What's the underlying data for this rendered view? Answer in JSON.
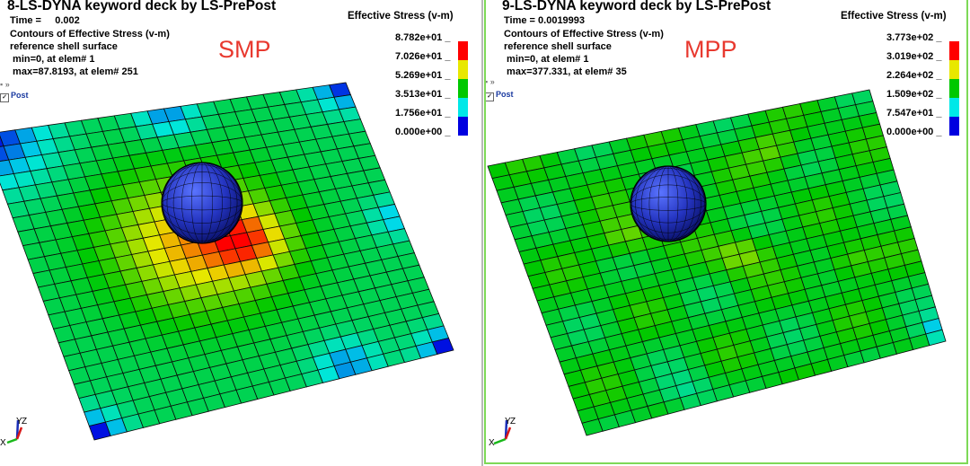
{
  "panels": [
    {
      "title": "8-LS-DYNA keyword deck by LS-PrePost",
      "time_label": "Time =",
      "time_value": "0.002",
      "contours": "Contours of Effective Stress (v-m)",
      "surface": "reference shell surface",
      "min_text": " min=0, at elem# 1",
      "max_text": " max=87.8193, at elem# 251",
      "tag": "SMP",
      "post_label": "Post",
      "legend_title": "Effective Stress (v-m)",
      "legend_values": [
        "8.782e+01",
        "7.026e+01",
        "5.269e+01",
        "3.513e+01",
        "1.756e+01",
        "0.000e+00"
      ],
      "axis_labels": {
        "x": "X",
        "y": "Y",
        "z": "Z"
      }
    },
    {
      "title": "9-LS-DYNA keyword deck by LS-PrePost",
      "time_label": "Time =",
      "time_value": "0.0019993",
      "contours": "Contours of Effective Stress (v-m)",
      "surface": "reference shell surface",
      "min_text": " min=0, at elem# 1",
      "max_text": " max=377.331, at elem# 35",
      "tag": "MPP",
      "post_label": "Post",
      "legend_title": "Effective Stress (v-m)",
      "legend_values": [
        "3.773e+02",
        "3.019e+02",
        "2.264e+02",
        "1.509e+02",
        "7.547e+01",
        "0.000e+00"
      ],
      "axis_labels": {
        "x": "X",
        "y": "Y",
        "z": "Z"
      }
    }
  ],
  "legend_colors": [
    "#ff0000",
    "#e8e800",
    "#00c800",
    "#00e8e8",
    "#0000e0"
  ],
  "colors": {
    "mesh_line": "#000000",
    "plate_base": "#33c0b0",
    "sphere": "#2a3ec8",
    "divider": "#b8b8b8",
    "frame_highlight": "#7ed957",
    "tag": "#e8392f"
  }
}
